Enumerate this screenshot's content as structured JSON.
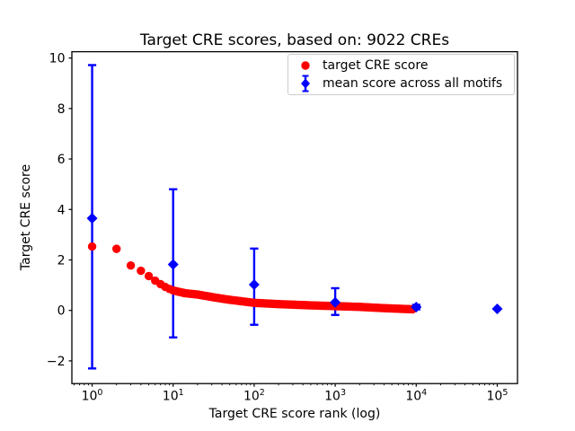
{
  "chart_data": {
    "type": "scatter",
    "title": "Target CRE scores, based on: 9022 CREs",
    "xlabel": "Target CRE score rank (log)",
    "ylabel": "Target CRE score",
    "x_scale": "log",
    "xlim_log10": [
      -0.25,
      5.25
    ],
    "ylim": [
      -2.9,
      10.25
    ],
    "x_major_tick_exponents": [
      0,
      1,
      2,
      3,
      4,
      5
    ],
    "y_ticks": [
      -2,
      0,
      2,
      4,
      6,
      8,
      10
    ],
    "grid": false,
    "n_cres": 9022,
    "series": [
      {
        "name": "target CRE score",
        "color": "#ff0000",
        "marker": "circle",
        "max_rank": 9022,
        "anchors_log10rank_score": [
          [
            0,
            2.53
          ],
          [
            0.301,
            2.44
          ],
          [
            0.477,
            1.78
          ],
          [
            0.602,
            1.57
          ],
          [
            0.699,
            1.36
          ],
          [
            0.778,
            1.18
          ],
          [
            0.845,
            1.04
          ],
          [
            0.903,
            0.93
          ],
          [
            0.954,
            0.85
          ],
          [
            1.0,
            0.79
          ],
          [
            1.15,
            0.68
          ],
          [
            1.3,
            0.63
          ],
          [
            1.5,
            0.52
          ],
          [
            1.7,
            0.42
          ],
          [
            2.0,
            0.3
          ],
          [
            2.3,
            0.25
          ],
          [
            2.7,
            0.2
          ],
          [
            3.0,
            0.17
          ],
          [
            3.3,
            0.14
          ],
          [
            3.6,
            0.09
          ],
          [
            3.9553,
            0.045
          ]
        ]
      },
      {
        "name": "mean score across all motifs",
        "color": "#0000ff",
        "marker": "diamond",
        "points": [
          {
            "rank": 1,
            "mean": 3.65,
            "err_lo": -2.3,
            "err_hi": 9.72
          },
          {
            "rank": 10,
            "mean": 1.82,
            "err_lo": -1.07,
            "err_hi": 4.8
          },
          {
            "rank": 100,
            "mean": 1.02,
            "err_lo": -0.57,
            "err_hi": 2.45
          },
          {
            "rank": 1000,
            "mean": 0.32,
            "err_lo": -0.18,
            "err_hi": 0.88
          },
          {
            "rank": 10000,
            "mean": 0.13,
            "err_lo": 0.04,
            "err_hi": 0.22
          },
          {
            "rank": 100000,
            "mean": 0.06,
            "err_lo": 0.06,
            "err_hi": 0.06
          }
        ]
      }
    ],
    "legend": {
      "position": "upper right",
      "entries": [
        {
          "label": "target CRE score"
        },
        {
          "label": "mean score across all motifs"
        }
      ]
    }
  }
}
